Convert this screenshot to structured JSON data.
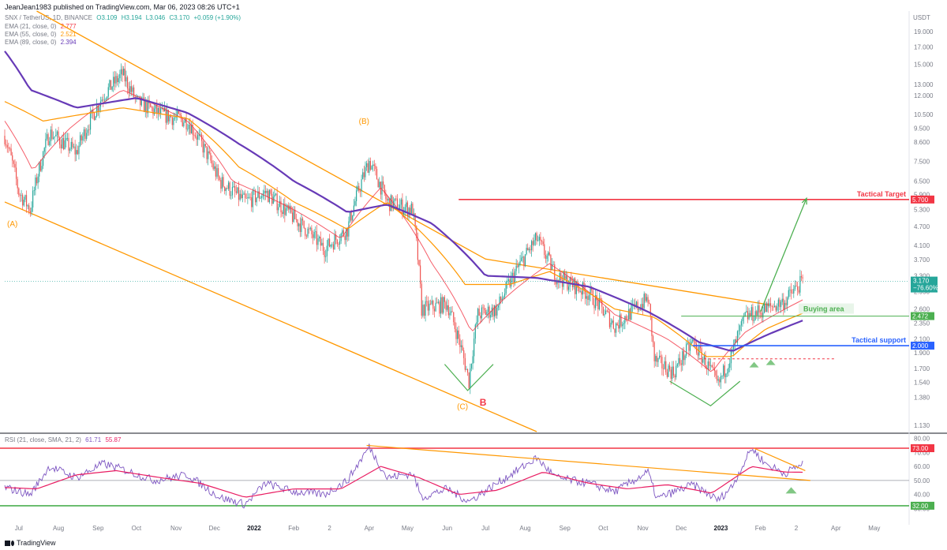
{
  "header": {
    "publisher_line": "JeanJean1983 published on TradingView.com, Mar 06, 2023 08:26 UTC+1"
  },
  "legend": {
    "symbol": "SNX / TetherUS, 1D, BINANCE",
    "ohlc": {
      "o": "O3.109",
      "h": "H3.194",
      "l": "L3.046",
      "c": "C3.170",
      "chg": "+0.059 (+1.90%)"
    },
    "ema21": {
      "label": "EMA (21, close, 0)",
      "value": "2.777",
      "color": "#f23645"
    },
    "ema55": {
      "label": "EMA (55, close, 0)",
      "value": "2.521",
      "color": "#ff9800"
    },
    "ema89": {
      "label": "EMA (89, close, 0)",
      "value": "2.394",
      "color": "#673ab7"
    },
    "rsi": {
      "label": "RSI (21, close, SMA, 21, 2)",
      "v1": "61.71",
      "v2": "55.87",
      "c1": "#7e57c2",
      "c2": "#e91e63"
    }
  },
  "footer": {
    "brand": "TradingView"
  },
  "colors": {
    "up": "#26a69a",
    "down": "#ef5350",
    "channel": "#ff9800",
    "target": "#f23645",
    "support": "#2962ff",
    "buy": "#4caf50",
    "arrow": "#4caf50",
    "rsi": "#7e57c2",
    "rsi_ma": "#e91e63"
  },
  "chart_data": [
    {
      "type": "candlestick",
      "title": "SNX / TetherUS, 1D, BINANCE",
      "ylabel": "USDT",
      "y_scale": "log",
      "ylim": [
        1.08,
        22
      ],
      "y_ticks": [
        "19.000",
        "17.000",
        "15.000",
        "13.000",
        "12.000",
        "10.500",
        "9.500",
        "8.600",
        "7.500",
        "6.500",
        "5.900",
        "5.300",
        "4.700",
        "4.100",
        "3.700",
        "3.300",
        "2.950",
        "2.600",
        "2.350",
        "2.100",
        "1.900",
        "1.700",
        "1.540",
        "1.380",
        "1.130"
      ],
      "x_ticks": [
        "Jul",
        "Aug",
        "Sep",
        "Oct",
        "Nov",
        "Dec",
        "2022",
        "Feb",
        "2",
        "Apr",
        "May",
        "Jun",
        "Jul",
        "Aug",
        "Sep",
        "Oct",
        "Nov",
        "Dec",
        "2023",
        "Feb",
        "2",
        "Apr",
        "May"
      ],
      "price_anchors": [
        {
          "x": "2021-06-20",
          "y": 9.0
        },
        {
          "x": "2021-07-01",
          "y": 6.0
        },
        {
          "x": "2021-07-10",
          "y": 5.3
        },
        {
          "x": "2021-07-25",
          "y": 9.2
        },
        {
          "x": "2021-08-15",
          "y": 8.0
        },
        {
          "x": "2021-09-05",
          "y": 12.0
        },
        {
          "x": "2021-09-20",
          "y": 14.0
        },
        {
          "x": "2021-10-01",
          "y": 11.5
        },
        {
          "x": "2021-10-20",
          "y": 10.5
        },
        {
          "x": "2021-11-10",
          "y": 10.0
        },
        {
          "x": "2021-12-05",
          "y": 6.5
        },
        {
          "x": "2021-12-25",
          "y": 5.6
        },
        {
          "x": "2022-01-10",
          "y": 6.0
        },
        {
          "x": "2022-02-01",
          "y": 5.0
        },
        {
          "x": "2022-02-25",
          "y": 4.0
        },
        {
          "x": "2022-03-15",
          "y": 4.6
        },
        {
          "x": "2022-04-01",
          "y": 7.5
        },
        {
          "x": "2022-04-15",
          "y": 5.6
        },
        {
          "x": "2022-05-05",
          "y": 5.3
        },
        {
          "x": "2022-05-12",
          "y": 2.6
        },
        {
          "x": "2022-06-01",
          "y": 2.7
        },
        {
          "x": "2022-06-18",
          "y": 1.55
        },
        {
          "x": "2022-06-25",
          "y": 2.5
        },
        {
          "x": "2022-07-10",
          "y": 2.6
        },
        {
          "x": "2022-08-10",
          "y": 4.3
        },
        {
          "x": "2022-08-25",
          "y": 3.3
        },
        {
          "x": "2022-09-20",
          "y": 2.9
        },
        {
          "x": "2022-10-10",
          "y": 2.3
        },
        {
          "x": "2022-11-05",
          "y": 2.8
        },
        {
          "x": "2022-11-10",
          "y": 1.8
        },
        {
          "x": "2022-11-25",
          "y": 1.65
        },
        {
          "x": "2022-12-10",
          "y": 2.05
        },
        {
          "x": "2022-12-30",
          "y": 1.5
        },
        {
          "x": "2023-01-10",
          "y": 1.9
        },
        {
          "x": "2023-01-20",
          "y": 2.45
        },
        {
          "x": "2023-02-05",
          "y": 2.6
        },
        {
          "x": "2023-02-20",
          "y": 2.75
        },
        {
          "x": "2023-03-06",
          "y": 3.17
        }
      ],
      "ema89_anchors": [
        {
          "x": "2021-06-20",
          "y": 16.5
        },
        {
          "x": "2021-07-10",
          "y": 12.5
        },
        {
          "x": "2021-08-15",
          "y": 11.0
        },
        {
          "x": "2021-10-01",
          "y": 11.8
        },
        {
          "x": "2021-11-10",
          "y": 10.6
        },
        {
          "x": "2021-12-20",
          "y": 8.5
        },
        {
          "x": "2022-02-01",
          "y": 6.5
        },
        {
          "x": "2022-03-15",
          "y": 5.2
        },
        {
          "x": "2022-04-15",
          "y": 5.5
        },
        {
          "x": "2022-05-20",
          "y": 4.8
        },
        {
          "x": "2022-07-01",
          "y": 3.3
        },
        {
          "x": "2022-08-10",
          "y": 3.25
        },
        {
          "x": "2022-09-20",
          "y": 3.05
        },
        {
          "x": "2022-11-05",
          "y": 2.55
        },
        {
          "x": "2022-12-15",
          "y": 2.05
        },
        {
          "x": "2023-01-10",
          "y": 1.92
        },
        {
          "x": "2023-02-05",
          "y": 2.15
        },
        {
          "x": "2023-03-06",
          "y": 2.394
        }
      ],
      "ema55_anchors": [
        {
          "x": "2021-06-20",
          "y": 11.5
        },
        {
          "x": "2021-07-20",
          "y": 10.0
        },
        {
          "x": "2021-09-20",
          "y": 11.0
        },
        {
          "x": "2021-11-10",
          "y": 10.2
        },
        {
          "x": "2021-12-20",
          "y": 7.2
        },
        {
          "x": "2022-02-01",
          "y": 5.6
        },
        {
          "x": "2022-03-15",
          "y": 4.6
        },
        {
          "x": "2022-04-15",
          "y": 5.6
        },
        {
          "x": "2022-06-15",
          "y": 3.1
        },
        {
          "x": "2022-07-20",
          "y": 3.1
        },
        {
          "x": "2022-08-20",
          "y": 3.4
        },
        {
          "x": "2022-10-10",
          "y": 2.6
        },
        {
          "x": "2022-11-10",
          "y": 2.45
        },
        {
          "x": "2022-12-20",
          "y": 1.85
        },
        {
          "x": "2023-01-10",
          "y": 1.85
        },
        {
          "x": "2023-02-05",
          "y": 2.25
        },
        {
          "x": "2023-03-06",
          "y": 2.521
        }
      ],
      "ema21_anchors": [
        {
          "x": "2021-06-20",
          "y": 10.0
        },
        {
          "x": "2021-07-12",
          "y": 7.0
        },
        {
          "x": "2021-08-10",
          "y": 9.5
        },
        {
          "x": "2021-09-20",
          "y": 12.5
        },
        {
          "x": "2021-11-10",
          "y": 10.0
        },
        {
          "x": "2021-12-15",
          "y": 6.5
        },
        {
          "x": "2022-02-01",
          "y": 5.3
        },
        {
          "x": "2022-03-10",
          "y": 4.3
        },
        {
          "x": "2022-04-10",
          "y": 6.2
        },
        {
          "x": "2022-05-20",
          "y": 3.6
        },
        {
          "x": "2022-06-20",
          "y": 2.2
        },
        {
          "x": "2022-07-20",
          "y": 2.9
        },
        {
          "x": "2022-08-20",
          "y": 3.6
        },
        {
          "x": "2022-10-10",
          "y": 2.5
        },
        {
          "x": "2022-11-20",
          "y": 2.1
        },
        {
          "x": "2022-12-25",
          "y": 1.65
        },
        {
          "x": "2023-01-20",
          "y": 2.2
        },
        {
          "x": "2023-03-06",
          "y": 2.777
        }
      ],
      "channel_upper": [
        {
          "x": "2021-07-15",
          "y": 22.0
        },
        {
          "x": "2022-07-01",
          "y": 3.72
        },
        {
          "x": "2023-02-08",
          "y": 2.68
        }
      ],
      "channel_lower": [
        {
          "x": "2021-06-20",
          "y": 5.6
        },
        {
          "x": "2022-08-10",
          "y": 1.08
        }
      ],
      "wave_labels": [
        {
          "label": "(A)",
          "x": "2021-06-26",
          "y": 4.7,
          "color": "#ff9800"
        },
        {
          "label": "(B)",
          "x": "2022-03-28",
          "y": 9.8,
          "color": "#ff9800"
        },
        {
          "label": "(C)",
          "x": "2022-06-13",
          "y": 1.27,
          "color": "#ff9800"
        },
        {
          "label": "B",
          "x": "2022-06-29",
          "y": 1.3,
          "color": "#f23645"
        }
      ],
      "horizontal_levels": [
        {
          "name": "Tactical Target",
          "value": 5.7,
          "value_label": "5.700",
          "color": "#f23645",
          "from": "2022-06-10"
        },
        {
          "name": "Buying area",
          "value": 2.472,
          "value_label": "2.472",
          "color": "#4caf50",
          "from": "2022-12-01"
        },
        {
          "name": "Tactical support",
          "value": 2.0,
          "value_label": "2.000",
          "color": "#2962ff",
          "from": "2022-12-10"
        }
      ],
      "last_price": {
        "value": 3.17,
        "label": "3.170",
        "sub": "−76.60%",
        "color": "#26a69a"
      },
      "dashed_level": {
        "value": 1.82,
        "from": "2022-12-15",
        "to": "2023-04-01",
        "color": "#f23645"
      },
      "target_arrow": {
        "from": {
          "x": "2023-02-01",
          "y": 2.55
        },
        "to": {
          "x": "2023-03-09",
          "y": 5.75
        }
      },
      "v_marks": [
        {
          "x1": "2022-05-30",
          "y1": 1.75,
          "xm": "2022-06-17",
          "ym": 1.45,
          "x2": "2022-07-07",
          "y2": 1.75
        },
        {
          "x1": "2022-11-22",
          "y1": 1.55,
          "xm": "2022-12-24",
          "ym": 1.3,
          "x2": "2023-01-16",
          "y2": 1.55
        }
      ],
      "triangles": [
        {
          "x": "2023-01-27",
          "y": 1.75
        },
        {
          "x": "2023-02-09",
          "y": 1.78
        }
      ]
    },
    {
      "type": "line",
      "title": "RSI (21, close, SMA, 21, 2)",
      "ylim": [
        28,
        82
      ],
      "y_ticks": [
        "80.00",
        "70.00",
        "60.00",
        "50.00",
        "40.00",
        "30.00"
      ],
      "levels": [
        {
          "value": 73,
          "label": "73.00",
          "color": "#f23645"
        },
        {
          "value": 32,
          "label": "32.00",
          "color": "#4caf50"
        },
        {
          "value": 50,
          "color": "#9598a1"
        }
      ],
      "series": [
        {
          "name": "RSI",
          "color": "#7e57c2",
          "anchors": [
            {
              "x": "2021-06-20",
              "y": 45
            },
            {
              "x": "2021-07-10",
              "y": 40
            },
            {
              "x": "2021-07-25",
              "y": 60
            },
            {
              "x": "2021-08-15",
              "y": 52
            },
            {
              "x": "2021-09-05",
              "y": 62
            },
            {
              "x": "2021-09-20",
              "y": 58
            },
            {
              "x": "2021-10-15",
              "y": 50
            },
            {
              "x": "2021-11-10",
              "y": 54
            },
            {
              "x": "2021-12-05",
              "y": 38
            },
            {
              "x": "2021-12-25",
              "y": 33
            },
            {
              "x": "2022-01-10",
              "y": 48
            },
            {
              "x": "2022-02-01",
              "y": 42
            },
            {
              "x": "2022-02-25",
              "y": 40
            },
            {
              "x": "2022-03-15",
              "y": 50
            },
            {
              "x": "2022-04-01",
              "y": 74
            },
            {
              "x": "2022-04-15",
              "y": 52
            },
            {
              "x": "2022-05-05",
              "y": 55
            },
            {
              "x": "2022-05-12",
              "y": 38
            },
            {
              "x": "2022-06-01",
              "y": 44
            },
            {
              "x": "2022-06-18",
              "y": 35
            },
            {
              "x": "2022-07-10",
              "y": 48
            },
            {
              "x": "2022-08-10",
              "y": 66
            },
            {
              "x": "2022-08-25",
              "y": 52
            },
            {
              "x": "2022-09-20",
              "y": 48
            },
            {
              "x": "2022-10-10",
              "y": 42
            },
            {
              "x": "2022-11-05",
              "y": 56
            },
            {
              "x": "2022-11-12",
              "y": 37
            },
            {
              "x": "2022-12-10",
              "y": 47
            },
            {
              "x": "2022-12-30",
              "y": 36
            },
            {
              "x": "2023-01-10",
              "y": 46
            },
            {
              "x": "2023-01-25",
              "y": 73
            },
            {
              "x": "2023-02-05",
              "y": 62
            },
            {
              "x": "2023-02-20",
              "y": 55
            },
            {
              "x": "2023-03-06",
              "y": 62
            }
          ]
        },
        {
          "name": "RSI SMA",
          "color": "#e91e63",
          "anchors": [
            {
              "x": "2021-06-20",
              "y": 45
            },
            {
              "x": "2021-07-15",
              "y": 44
            },
            {
              "x": "2021-08-15",
              "y": 54
            },
            {
              "x": "2021-09-15",
              "y": 57
            },
            {
              "x": "2021-10-20",
              "y": 52
            },
            {
              "x": "2021-11-20",
              "y": 48
            },
            {
              "x": "2021-12-25",
              "y": 38
            },
            {
              "x": "2022-02-01",
              "y": 44
            },
            {
              "x": "2022-03-10",
              "y": 44
            },
            {
              "x": "2022-04-10",
              "y": 60
            },
            {
              "x": "2022-05-10",
              "y": 52
            },
            {
              "x": "2022-06-10",
              "y": 40
            },
            {
              "x": "2022-07-10",
              "y": 43
            },
            {
              "x": "2022-08-15",
              "y": 56
            },
            {
              "x": "2022-09-20",
              "y": 48
            },
            {
              "x": "2022-10-20",
              "y": 44
            },
            {
              "x": "2022-11-20",
              "y": 47
            },
            {
              "x": "2022-12-25",
              "y": 41
            },
            {
              "x": "2023-01-25",
              "y": 60
            },
            {
              "x": "2023-02-20",
              "y": 56
            },
            {
              "x": "2023-03-06",
              "y": 55.87
            }
          ]
        }
      ],
      "trendline": [
        {
          "x": "2022-03-30",
          "y": 75
        },
        {
          "x": "2023-03-12",
          "y": 50
        }
      ],
      "trendline2": [
        {
          "x": "2023-01-27",
          "y": 73
        },
        {
          "x": "2023-03-08",
          "y": 57
        }
      ],
      "triangle": {
        "x": "2023-02-25",
        "y": 43
      }
    }
  ]
}
